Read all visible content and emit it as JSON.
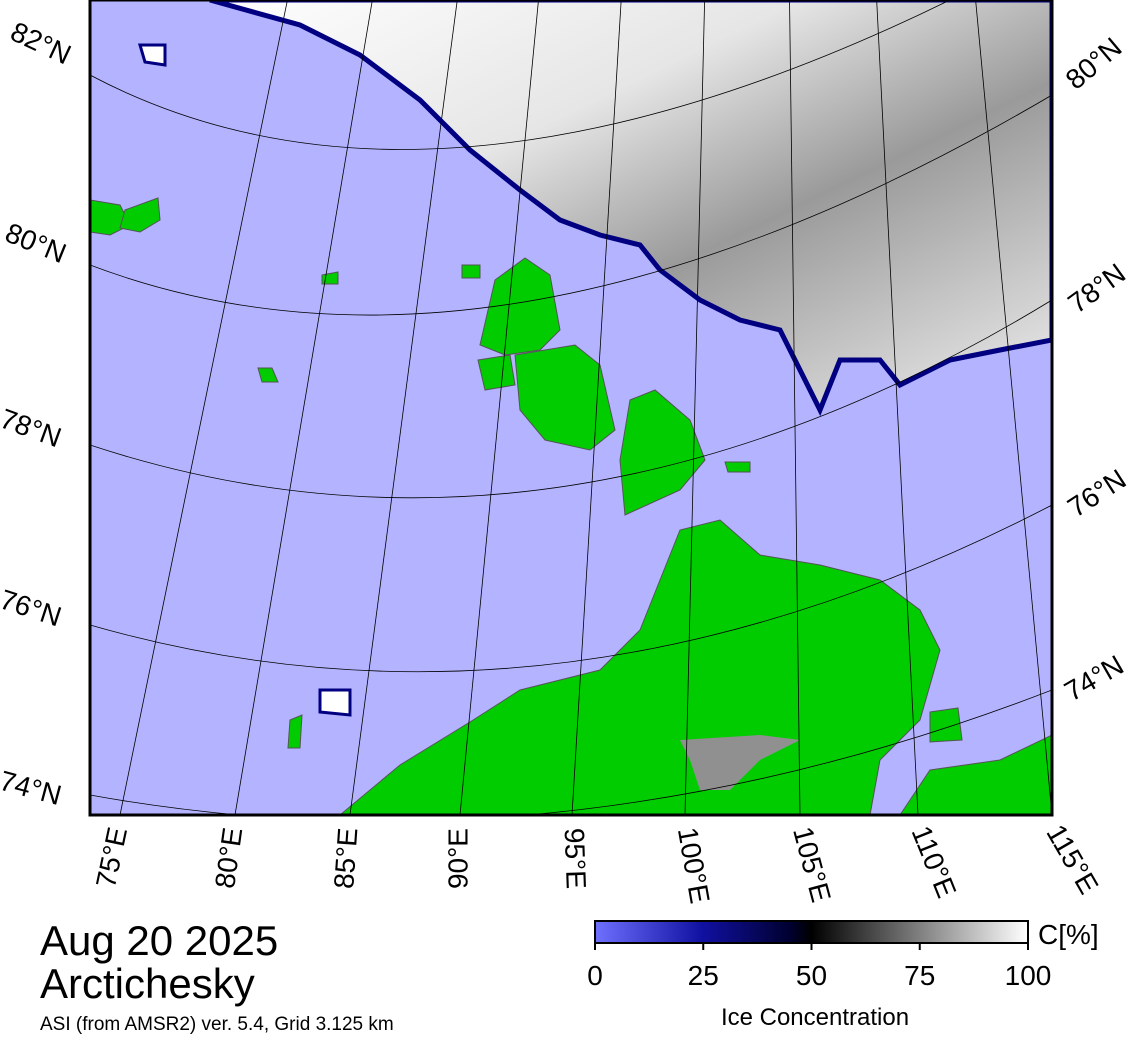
{
  "header": {
    "date": "Aug 20 2025",
    "region": "Arctichesky",
    "source": "ASI (from AMSR2) ver. 5.4,  Grid 3.125 km"
  },
  "map": {
    "lat_labels_left": [
      "82°N",
      "80°N",
      "78°N",
      "76°N",
      "74°N"
    ],
    "lat_labels_right": [
      "80°N",
      "78°N",
      "76°N",
      "74°N"
    ],
    "lon_labels": [
      "75°E",
      "80°E",
      "85°E",
      "90°E",
      "95°E",
      "100°E",
      "105°E",
      "110°E",
      "115°E"
    ]
  },
  "colorbar": {
    "unit": "C[%]",
    "title": "Ice Concentration",
    "lim": [
      0,
      100
    ],
    "ticks": [
      0,
      25,
      50,
      75,
      100
    ]
  }
}
